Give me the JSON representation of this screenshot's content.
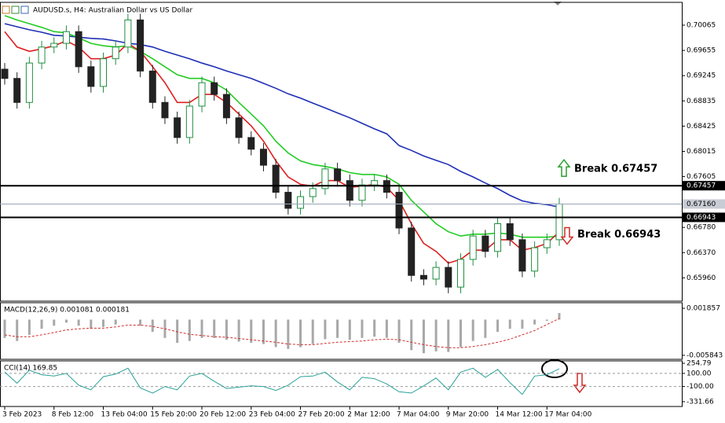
{
  "chart_data": [
    {
      "type": "candlestick",
      "title": "AUDUSD.s, H4:  Australian Dollar vs US Dollar",
      "categories": [
        "3 Feb 2023",
        null,
        null,
        null,
        "8 Feb 12:00",
        null,
        null,
        null,
        "13 Feb 04:00",
        null,
        null,
        null,
        "15 Feb 20:00",
        null,
        null,
        null,
        "20 Feb 12:00",
        null,
        null,
        null,
        "23 Feb 04:00",
        null,
        null,
        null,
        "27 Feb 20:00",
        null,
        null,
        null,
        "2 Mar 12:00",
        null,
        null,
        null,
        "7 Mar 04:00",
        null,
        null,
        null,
        "9 Mar 20:00",
        null,
        null,
        null,
        "14 Mar 12:00",
        null,
        null,
        null,
        "17 Mar 04:00",
        null
      ],
      "open": [
        0.6935,
        0.692,
        0.6881,
        0.6945,
        0.6971,
        0.6977,
        0.6996,
        0.6939,
        0.6907,
        0.6952,
        0.6971,
        0.7015,
        0.6932,
        0.6881,
        0.6856,
        0.6824,
        0.6875,
        0.6913,
        0.6894,
        0.6856,
        0.6824,
        0.6805,
        0.6779,
        0.6735,
        0.6709,
        0.6728,
        0.6741,
        0.6773,
        0.6754,
        0.6722,
        0.6747,
        0.6754,
        0.6735,
        0.6677,
        0.66,
        0.6594,
        0.6613,
        0.6581,
        0.6626,
        0.6664,
        0.6639,
        0.6684,
        0.6658,
        0.6607,
        0.6645,
        0.6658
      ],
      "high": [
        0.6945,
        0.693,
        0.6955,
        0.6981,
        0.6987,
        0.7006,
        0.7006,
        0.6949,
        0.6962,
        0.6981,
        0.7025,
        0.7025,
        0.6942,
        0.6891,
        0.6866,
        0.6885,
        0.6923,
        0.6923,
        0.6904,
        0.6866,
        0.6834,
        0.6815,
        0.6789,
        0.6745,
        0.6738,
        0.6751,
        0.6783,
        0.6783,
        0.6764,
        0.6757,
        0.6764,
        0.6764,
        0.6745,
        0.6687,
        0.661,
        0.6623,
        0.6623,
        0.6636,
        0.6674,
        0.6674,
        0.6694,
        0.6694,
        0.6668,
        0.6655,
        0.6668,
        0.6726
      ],
      "low": [
        0.691,
        0.6871,
        0.6871,
        0.6935,
        0.6961,
        0.6967,
        0.6929,
        0.6897,
        0.6897,
        0.6942,
        0.6961,
        0.6922,
        0.6871,
        0.6846,
        0.6814,
        0.6814,
        0.6865,
        0.6884,
        0.6846,
        0.6814,
        0.6795,
        0.6769,
        0.6725,
        0.6699,
        0.6699,
        0.6718,
        0.6731,
        0.6744,
        0.6712,
        0.6712,
        0.6737,
        0.6725,
        0.6667,
        0.659,
        0.6584,
        0.6584,
        0.6571,
        0.6571,
        0.6616,
        0.6629,
        0.6629,
        0.6648,
        0.6597,
        0.6597,
        0.6635,
        0.6648
      ],
      "close": [
        0.692,
        0.6881,
        0.6945,
        0.6971,
        0.6977,
        0.6996,
        0.6939,
        0.6907,
        0.6952,
        0.6971,
        0.7015,
        0.6932,
        0.6881,
        0.6856,
        0.6824,
        0.6875,
        0.6913,
        0.6894,
        0.6856,
        0.6824,
        0.6805,
        0.6779,
        0.6735,
        0.6709,
        0.6728,
        0.6741,
        0.6773,
        0.6754,
        0.6722,
        0.6747,
        0.6754,
        0.6735,
        0.6677,
        0.66,
        0.6594,
        0.6613,
        0.6581,
        0.6626,
        0.6664,
        0.6639,
        0.6684,
        0.6658,
        0.6607,
        0.6645,
        0.6658,
        0.6716
      ],
      "up_color": "#1f8f3f",
      "down_color": "#222222",
      "series": [
        {
          "color": "#1f2fb5",
          "values": [
            0.7009,
            0.7004,
            0.6999,
            0.6995,
            0.699,
            0.6989,
            0.6987,
            0.6985,
            0.6984,
            0.6981,
            0.6977,
            0.6975,
            0.6971,
            0.6964,
            0.6958,
            0.6952,
            0.6945,
            0.6939,
            0.6932,
            0.6926,
            0.692,
            0.6912,
            0.6904,
            0.6895,
            0.6888,
            0.688,
            0.6872,
            0.6864,
            0.6856,
            0.6847,
            0.6838,
            0.683,
            0.6811,
            0.6803,
            0.6794,
            0.6787,
            0.678,
            0.6769,
            0.676,
            0.675,
            0.6741,
            0.673,
            0.6721,
            0.6717,
            0.6715,
            0.6711
          ]
        },
        {
          "color": "#22cc22",
          "values": [
            0.7022,
            0.7015,
            0.7009,
            0.7003,
            0.6996,
            0.6994,
            0.6986,
            0.6977,
            0.6973,
            0.6971,
            0.6973,
            0.6964,
            0.6952,
            0.6939,
            0.6926,
            0.692,
            0.692,
            0.6913,
            0.6901,
            0.6881,
            0.6862,
            0.6843,
            0.6818,
            0.6799,
            0.6786,
            0.678,
            0.6777,
            0.6773,
            0.6767,
            0.6764,
            0.6764,
            0.676,
            0.6748,
            0.6722,
            0.6703,
            0.6684,
            0.6671,
            0.6664,
            0.6667,
            0.6667,
            0.6669,
            0.6667,
            0.6662,
            0.6662,
            0.6662,
            0.6664
          ]
        },
        {
          "color": "#dd2020",
          "values": [
            0.6996,
            0.6971,
            0.6964,
            0.6968,
            0.6973,
            0.6981,
            0.6971,
            0.6952,
            0.6952,
            0.6958,
            0.6977,
            0.6964,
            0.6939,
            0.6913,
            0.6881,
            0.6881,
            0.6894,
            0.6894,
            0.6881,
            0.6862,
            0.6843,
            0.6818,
            0.6786,
            0.676,
            0.6748,
            0.6745,
            0.6754,
            0.6754,
            0.6743,
            0.6745,
            0.6748,
            0.6743,
            0.6722,
            0.6684,
            0.6652,
            0.6639,
            0.662,
            0.6626,
            0.6641,
            0.6641,
            0.6658,
            0.6658,
            0.6641,
            0.6645,
            0.6652,
            0.6671
          ]
        }
      ],
      "ylim": [
        0.65582,
        0.7041
      ],
      "yticks": [
        0.70065,
        0.69655,
        0.69245,
        0.68835,
        0.68425,
        0.68015,
        0.67605,
        {
          "value": 0.6678,
          "label": "0.66780"
        },
        {
          "value": 0.6637,
          "label": "0.66370"
        },
        {
          "value": 0.6596,
          "label": "0.65960"
        }
      ],
      "levels": [
        0.67457,
        0.66943
      ],
      "current_price": {
        "value": 0.6716,
        "label": "0.67160"
      },
      "annotations": [
        {
          "text": "Break 0.67457",
          "direction": "up",
          "color": "#2e9e2e"
        },
        {
          "text": "Break 0.66943",
          "direction": "down",
          "color": "#d02a2a"
        }
      ]
    },
    {
      "type": "macd",
      "title": "MACD(12,26,9) 0.001081 0.000181",
      "values": [
        -0.003,
        -0.0035,
        -0.0025,
        -0.0015,
        -0.001,
        -0.0005,
        -0.001,
        -0.0015,
        -0.0012,
        -0.0008,
        0.0,
        -0.001,
        -0.002,
        -0.003,
        -0.0038,
        -0.0035,
        -0.003,
        -0.003,
        -0.0033,
        -0.0036,
        -0.0038,
        -0.004,
        -0.0045,
        -0.0048,
        -0.0045,
        -0.004,
        -0.0032,
        -0.003,
        -0.0033,
        -0.003,
        -0.0028,
        -0.003,
        -0.0038,
        -0.005,
        -0.0055,
        -0.0052,
        -0.0053,
        -0.0045,
        -0.0035,
        -0.003,
        -0.002,
        -0.0015,
        -0.0015,
        -0.0008,
        -0.0002,
        0.001081
      ],
      "signal": [
        -0.0025,
        -0.0028,
        -0.0028,
        -0.0025,
        -0.0021,
        -0.0017,
        -0.0015,
        -0.0014,
        -0.0014,
        -0.0012,
        -0.0009,
        -0.0009,
        -0.0011,
        -0.0015,
        -0.002,
        -0.0024,
        -0.0026,
        -0.0028,
        -0.0029,
        -0.0031,
        -0.0033,
        -0.0035,
        -0.0037,
        -0.004,
        -0.0041,
        -0.0041,
        -0.0039,
        -0.0037,
        -0.0036,
        -0.0035,
        -0.0033,
        -0.0032,
        -0.0033,
        -0.0037,
        -0.0041,
        -0.0044,
        -0.0046,
        -0.0046,
        -0.0044,
        -0.0041,
        -0.0037,
        -0.0032,
        -0.0025,
        -0.0018,
        -0.0008,
        0.000181
      ],
      "color": "#a8a8a8",
      "signal_color": "#d03030",
      "ylim": [
        -0.0065,
        0.00277
      ],
      "yticks": [
        0.001857,
        -0.005843
      ]
    },
    {
      "type": "line",
      "title": "CCI(14) 169.85",
      "values": [
        120,
        -50,
        150,
        80,
        60,
        100,
        -80,
        -150,
        50,
        90,
        180,
        -120,
        -200,
        -100,
        -150,
        60,
        100,
        -20,
        -130,
        -110,
        -90,
        -100,
        -160,
        -80,
        50,
        60,
        120,
        -30,
        -150,
        40,
        20,
        -60,
        -180,
        -200,
        -90,
        30,
        -150,
        120,
        180,
        40,
        160,
        -40,
        -220,
        60,
        80,
        169.85
      ],
      "color": "#2aa198",
      "ylim": [
        -405,
        291
      ],
      "yticks": [
        254.79,
        {
          "value": 100,
          "label": "100.00"
        },
        {
          "value": -100,
          "label": "-100.00"
        },
        -331.66
      ],
      "levels": [
        100,
        -100
      ]
    }
  ]
}
